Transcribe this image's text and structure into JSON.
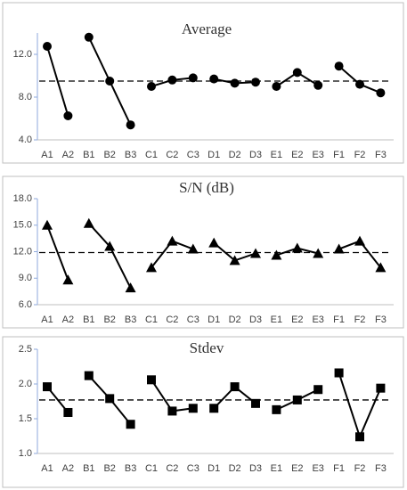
{
  "chart_data": [
    {
      "type": "line",
      "title": "Average",
      "marker": "circle",
      "color": "#000000",
      "categories": [
        "A1",
        "A2",
        "B1",
        "B2",
        "B3",
        "C1",
        "C2",
        "C3",
        "D1",
        "D2",
        "D3",
        "E1",
        "E2",
        "E3",
        "F1",
        "F2",
        "F3"
      ],
      "series": [
        {
          "values": [
            12.75,
            6.25,
            null,
            null,
            null,
            null,
            null,
            null,
            null,
            null,
            null,
            null,
            null,
            null,
            null,
            null,
            null
          ]
        },
        {
          "values": [
            null,
            null,
            13.6,
            9.5,
            5.4,
            null,
            null,
            null,
            null,
            null,
            null,
            null,
            null,
            null,
            null,
            null,
            null
          ]
        },
        {
          "values": [
            null,
            null,
            null,
            null,
            null,
            9.0,
            9.6,
            9.8,
            null,
            null,
            null,
            null,
            null,
            null,
            null,
            null,
            null
          ]
        },
        {
          "values": [
            null,
            null,
            null,
            null,
            null,
            null,
            null,
            null,
            9.7,
            9.3,
            9.4,
            null,
            null,
            null,
            null,
            null,
            null
          ]
        },
        {
          "values": [
            null,
            null,
            null,
            null,
            null,
            null,
            null,
            null,
            null,
            null,
            null,
            9.0,
            10.3,
            9.1,
            null,
            null,
            null
          ]
        },
        {
          "values": [
            null,
            null,
            null,
            null,
            null,
            null,
            null,
            null,
            null,
            null,
            null,
            null,
            null,
            null,
            10.9,
            9.2,
            8.4
          ]
        }
      ],
      "reference_line": 9.5,
      "ylim": [
        4,
        14
      ],
      "yticks": [
        {
          "value": 4,
          "label": "4.0"
        },
        {
          "value": 8,
          "label": "8.0"
        },
        {
          "value": 12,
          "label": "12.0"
        }
      ]
    },
    {
      "type": "line",
      "title": "S/N (dB)",
      "marker": "triangle",
      "color": "#000000",
      "categories": [
        "A1",
        "A2",
        "B1",
        "B2",
        "B3",
        "C1",
        "C2",
        "C3",
        "D1",
        "D2",
        "D3",
        "E1",
        "E2",
        "E3",
        "F1",
        "F2",
        "F3"
      ],
      "series": [
        {
          "values": [
            15.0,
            8.8,
            null,
            null,
            null,
            null,
            null,
            null,
            null,
            null,
            null,
            null,
            null,
            null,
            null,
            null,
            null
          ]
        },
        {
          "values": [
            null,
            null,
            15.2,
            12.6,
            7.9,
            null,
            null,
            null,
            null,
            null,
            null,
            null,
            null,
            null,
            null,
            null,
            null
          ]
        },
        {
          "values": [
            null,
            null,
            null,
            null,
            null,
            10.2,
            13.2,
            12.3,
            null,
            null,
            null,
            null,
            null,
            null,
            null,
            null,
            null
          ]
        },
        {
          "values": [
            null,
            null,
            null,
            null,
            null,
            null,
            null,
            null,
            13.0,
            11.0,
            11.8,
            null,
            null,
            null,
            null,
            null,
            null
          ]
        },
        {
          "values": [
            null,
            null,
            null,
            null,
            null,
            null,
            null,
            null,
            null,
            null,
            null,
            11.6,
            12.4,
            11.8,
            null,
            null,
            null
          ]
        },
        {
          "values": [
            null,
            null,
            null,
            null,
            null,
            null,
            null,
            null,
            null,
            null,
            null,
            null,
            null,
            null,
            12.3,
            13.2,
            10.2
          ]
        }
      ],
      "reference_line": 11.9,
      "ylim": [
        6,
        18
      ],
      "yticks": [
        {
          "value": 6,
          "label": "6.0"
        },
        {
          "value": 9,
          "label": "9.0"
        },
        {
          "value": 12,
          "label": "12.0"
        },
        {
          "value": 15,
          "label": "15.0"
        },
        {
          "value": 18,
          "label": "18.0"
        }
      ]
    },
    {
      "type": "line",
      "title": "Stdev",
      "marker": "square",
      "color": "#000000",
      "categories": [
        "A1",
        "A2",
        "B1",
        "B2",
        "B3",
        "C1",
        "C2",
        "C3",
        "D1",
        "D2",
        "D3",
        "E1",
        "E2",
        "E3",
        "F1",
        "F2",
        "F3"
      ],
      "series": [
        {
          "values": [
            1.96,
            1.59,
            null,
            null,
            null,
            null,
            null,
            null,
            null,
            null,
            null,
            null,
            null,
            null,
            null,
            null,
            null
          ]
        },
        {
          "values": [
            null,
            null,
            2.12,
            1.79,
            1.42,
            null,
            null,
            null,
            null,
            null,
            null,
            null,
            null,
            null,
            null,
            null,
            null
          ]
        },
        {
          "values": [
            null,
            null,
            null,
            null,
            null,
            2.06,
            1.61,
            1.65,
            null,
            null,
            null,
            null,
            null,
            null,
            null,
            null,
            null
          ]
        },
        {
          "values": [
            null,
            null,
            null,
            null,
            null,
            null,
            null,
            null,
            1.65,
            1.96,
            1.72,
            null,
            null,
            null,
            null,
            null,
            null
          ]
        },
        {
          "values": [
            null,
            null,
            null,
            null,
            null,
            null,
            null,
            null,
            null,
            null,
            null,
            1.63,
            1.77,
            1.92,
            null,
            null,
            null
          ]
        },
        {
          "values": [
            null,
            null,
            null,
            null,
            null,
            null,
            null,
            null,
            null,
            null,
            null,
            null,
            null,
            null,
            2.16,
            1.24,
            1.94
          ]
        }
      ],
      "reference_line": 1.77,
      "ylim": [
        1,
        2.5
      ],
      "yticks": [
        {
          "value": 1,
          "label": "1.0"
        },
        1.5,
        {
          "value": 2,
          "label": "2.0"
        },
        2.5
      ]
    }
  ]
}
